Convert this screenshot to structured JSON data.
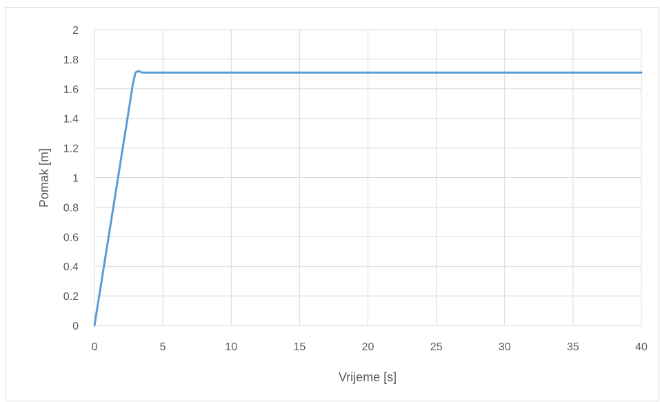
{
  "chart_data": {
    "type": "line",
    "title": "",
    "xlabel": "Vrijeme [s]",
    "ylabel": "Pomak [m]",
    "xlim": [
      0,
      40
    ],
    "ylim": [
      0,
      2
    ],
    "x_ticks": [
      0,
      5,
      10,
      15,
      20,
      25,
      30,
      35,
      40
    ],
    "y_ticks": [
      0,
      0.2,
      0.4,
      0.6,
      0.8,
      1,
      1.2,
      1.4,
      1.6,
      1.8,
      2
    ],
    "grid": true,
    "legend": "none",
    "series": [
      {
        "color": "#5b9bd5",
        "x": [
          0,
          0.5,
          1,
          1.5,
          2,
          2.5,
          2.8,
          3.0,
          3.2,
          3.5,
          4,
          5,
          10,
          15,
          20,
          25,
          30,
          35,
          40
        ],
        "y": [
          0,
          0.29,
          0.58,
          0.87,
          1.16,
          1.45,
          1.63,
          1.71,
          1.72,
          1.71,
          1.71,
          1.71,
          1.71,
          1.71,
          1.71,
          1.71,
          1.71,
          1.71,
          1.71
        ]
      }
    ]
  }
}
